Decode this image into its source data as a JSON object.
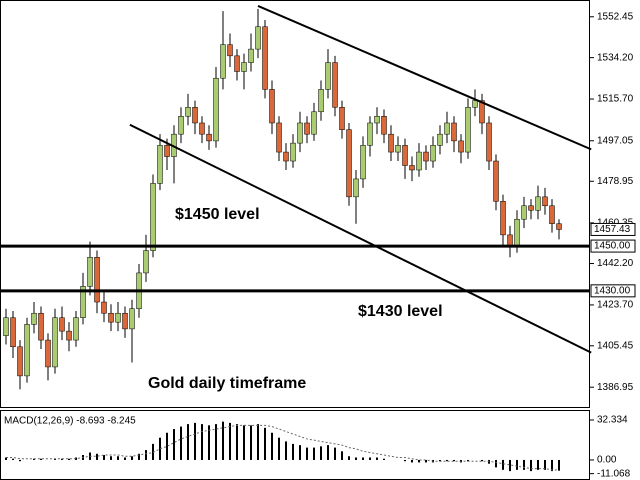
{
  "chart_data": [
    {
      "type": "candlestick",
      "annotations": [
        "$1450 level",
        "$1430 level",
        "Gold daily timeframe"
      ],
      "open": [
        1410,
        1418,
        1405,
        1392,
        1415,
        1420,
        1408,
        1396,
        1418,
        1412,
        1408,
        1418,
        1432,
        1445,
        1425,
        1420,
        1416,
        1420,
        1413,
        1422,
        1438,
        1448,
        1478,
        1495,
        1490,
        1500,
        1508,
        1512,
        1505,
        1500,
        1497,
        1525,
        1540,
        1535,
        1528,
        1532,
        1538,
        1548,
        1520,
        1505,
        1492,
        1488,
        1496,
        1505,
        1500,
        1510,
        1520,
        1532,
        1512,
        1502,
        1472,
        1480,
        1495,
        1505,
        1508,
        1500,
        1492,
        1495,
        1486,
        1484,
        1492,
        1488,
        1495,
        1500,
        1505,
        1497,
        1492,
        1512,
        1515,
        1505,
        1488,
        1470,
        1455,
        1450,
        1462,
        1468,
        1466,
        1472,
        1468,
        1460
      ],
      "high": [
        1422,
        1421,
        1408,
        1418,
        1425,
        1423,
        1411,
        1422,
        1423,
        1416,
        1421,
        1438,
        1452,
        1448,
        1430,
        1424,
        1425,
        1423,
        1426,
        1442,
        1455,
        1482,
        1500,
        1498,
        1504,
        1512,
        1518,
        1515,
        1508,
        1504,
        1530,
        1555,
        1545,
        1538,
        1536,
        1545,
        1556,
        1551,
        1524,
        1508,
        1496,
        1500,
        1510,
        1508,
        1514,
        1524,
        1538,
        1535,
        1515,
        1505,
        1484,
        1499,
        1508,
        1512,
        1511,
        1504,
        1499,
        1498,
        1490,
        1496,
        1495,
        1499,
        1504,
        1510,
        1508,
        1500,
        1516,
        1520,
        1518,
        1508,
        1491,
        1473,
        1459,
        1466,
        1472,
        1471,
        1477,
        1476,
        1471,
        1462
      ],
      "low": [
        1406,
        1400,
        1386,
        1389,
        1411,
        1404,
        1390,
        1393,
        1408,
        1403,
        1405,
        1415,
        1428,
        1420,
        1416,
        1412,
        1412,
        1409,
        1398,
        1418,
        1434,
        1445,
        1475,
        1484,
        1478,
        1496,
        1504,
        1500,
        1496,
        1493,
        1494,
        1520,
        1530,
        1524,
        1520,
        1528,
        1534,
        1516,
        1500,
        1488,
        1484,
        1485,
        1492,
        1496,
        1497,
        1506,
        1516,
        1508,
        1498,
        1468,
        1460,
        1476,
        1490,
        1500,
        1496,
        1488,
        1488,
        1480,
        1479,
        1481,
        1484,
        1485,
        1491,
        1496,
        1492,
        1487,
        1489,
        1508,
        1500,
        1484,
        1466,
        1450,
        1445,
        1447,
        1458,
        1462,
        1462,
        1464,
        1456,
        1453
      ],
      "close": [
        1418,
        1405,
        1392,
        1415,
        1420,
        1408,
        1396,
        1418,
        1412,
        1408,
        1418,
        1432,
        1445,
        1425,
        1420,
        1416,
        1420,
        1413,
        1422,
        1438,
        1448,
        1478,
        1495,
        1490,
        1500,
        1508,
        1512,
        1505,
        1500,
        1497,
        1525,
        1540,
        1535,
        1528,
        1532,
        1538,
        1548,
        1520,
        1505,
        1492,
        1488,
        1496,
        1505,
        1500,
        1510,
        1520,
        1532,
        1512,
        1502,
        1472,
        1480,
        1495,
        1505,
        1508,
        1500,
        1492,
        1495,
        1486,
        1484,
        1492,
        1488,
        1495,
        1500,
        1505,
        1497,
        1492,
        1512,
        1515,
        1505,
        1488,
        1470,
        1455,
        1450,
        1462,
        1468,
        1466,
        1472,
        1468,
        1460,
        1457.43
      ],
      "up_color": "#a9cc73",
      "down_color": "#d9683a",
      "ylim": [
        1378.1,
        1559.5
      ],
      "yticks": [
        {
          "value": 1552.45,
          "label": "1552.45"
        },
        {
          "value": 1534.2,
          "label": "1534.20"
        },
        {
          "value": 1515.7,
          "label": "1515.70"
        },
        {
          "value": 1497.05,
          "label": "1497.05"
        },
        {
          "value": 1478.95,
          "label": "1478.95"
        },
        {
          "value": 1460.35,
          "label": "1460.35"
        },
        {
          "value": 1442.2,
          "label": "1442.20"
        },
        {
          "value": 1423.7,
          "label": "1423.70"
        },
        {
          "value": 1405.45,
          "label": "1405.45"
        },
        {
          "value": 1386.95,
          "label": "1386.95"
        }
      ],
      "levels": [
        {
          "value": 1450,
          "label": "1450.00"
        },
        {
          "value": 1430,
          "label": "1430.00"
        }
      ],
      "last_price": {
        "value": 1457.43,
        "label": "1457.43"
      },
      "trendlines": [
        {
          "x": [
            36,
            83.6
          ],
          "y": [
            1557.3,
            1493.2
          ]
        },
        {
          "x": [
            17.7,
            83.6
          ],
          "y": [
            1504.2,
            1402.4
          ]
        }
      ]
    },
    {
      "type": "macd",
      "title": "MACD(12,26,9) -8.693 -8.245",
      "macd": [
        2,
        1,
        -1,
        0,
        1,
        1,
        0,
        1,
        1,
        1,
        2,
        4,
        6,
        5,
        4,
        3,
        3,
        2,
        3,
        5,
        8,
        13,
        18,
        22,
        25,
        27,
        29,
        30,
        29,
        28,
        29,
        31,
        30,
        29,
        28,
        28,
        29,
        26,
        22,
        18,
        15,
        13,
        12,
        10,
        10,
        11,
        12,
        10,
        7,
        3,
        2,
        2,
        2,
        2,
        1,
        0,
        0,
        -1,
        -2,
        -2,
        -2,
        -2,
        -1,
        -1,
        -1,
        -2,
        -1,
        0,
        -1,
        -3,
        -6,
        -8,
        -9,
        -8,
        -8,
        -9,
        -8,
        -8,
        -9,
        -8.693
      ],
      "signal": [
        2,
        2,
        1,
        1,
        1,
        1,
        1,
        1,
        1,
        1,
        1,
        2,
        3,
        3,
        4,
        4,
        4,
        3,
        3,
        4,
        5,
        6,
        9,
        11,
        14,
        17,
        19,
        21,
        23,
        24,
        25,
        26,
        27,
        28,
        28,
        28,
        28,
        28,
        27,
        25,
        23,
        21,
        19,
        17,
        16,
        15,
        14,
        13,
        12,
        10,
        9,
        7,
        6,
        5,
        4,
        3,
        2,
        2,
        1,
        0,
        0,
        -1,
        -1,
        -1,
        -1,
        -1,
        -1,
        -1,
        -1,
        -1,
        -2,
        -3,
        -4,
        -5,
        -6,
        -7,
        -7,
        -7,
        -8,
        -8.245
      ],
      "color": "#000000",
      "signal_color": "#666666",
      "ylim": [
        -15.4,
        39.6
      ],
      "yticks": [
        32.334,
        {
          "value": 0,
          "label": "0.00"
        },
        -11.068
      ]
    }
  ]
}
